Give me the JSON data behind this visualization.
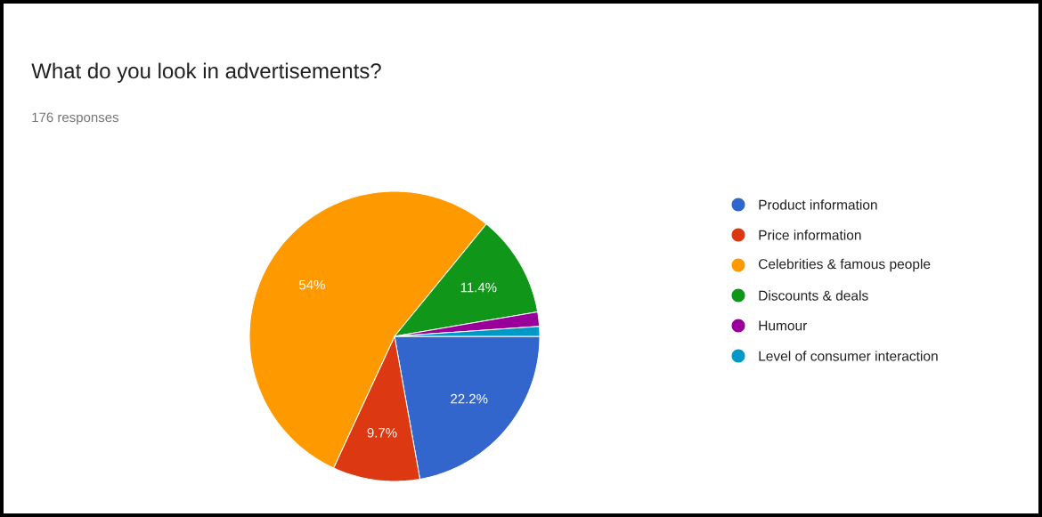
{
  "chart_data": {
    "type": "pie",
    "title": "What do you look in advertisements?",
    "subtitle": "176 responses",
    "categories": [
      "Product information",
      "Price information",
      "Celebrities & famous people",
      "Discounts & deals",
      "Humour",
      "Level of consumer interaction"
    ],
    "values": [
      22.2,
      9.7,
      54,
      11.4,
      1.6,
      1.1
    ],
    "colors": [
      "#3366cc",
      "#dc3912",
      "#ff9900",
      "#109618",
      "#990099",
      "#0099c6"
    ],
    "value_labels": [
      "22.2%",
      "9.7%",
      "54%",
      "11.4%",
      null,
      null
    ],
    "legend": "right"
  }
}
